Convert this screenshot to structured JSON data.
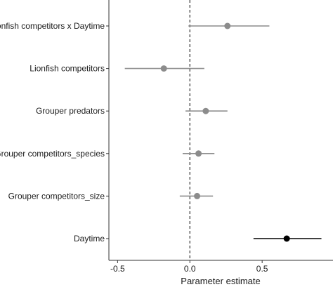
{
  "chart_data": {
    "type": "scatter",
    "subtype": "coefficient-plot",
    "xlabel": "Parameter estimate",
    "ylabel": "",
    "xlim": [
      -0.56,
      0.99
    ],
    "xticks": [
      -0.5,
      0.0,
      0.5
    ],
    "xtick_labels": [
      "-0.5",
      "0.0",
      "0.5"
    ],
    "reference_line": {
      "x": 0,
      "style": "dashed"
    },
    "grid": false,
    "categories": [
      "Lionfish competitors x Daytime",
      "Lionfish competitors",
      "Grouper predators",
      "Grouper competitors_species",
      "Grouper competitors_size",
      "Daytime"
    ],
    "estimates": [
      0.26,
      -0.18,
      0.11,
      0.06,
      0.05,
      0.67
    ],
    "ci_lower": [
      -0.01,
      -0.45,
      -0.03,
      -0.05,
      -0.07,
      0.44
    ],
    "ci_upper": [
      0.55,
      0.1,
      0.26,
      0.17,
      0.16,
      0.91
    ],
    "significant": [
      false,
      false,
      false,
      false,
      false,
      true
    ],
    "colors": {
      "nonsignificant": "#8c8c8c",
      "significant": "#000000",
      "axis": "#333333"
    }
  }
}
